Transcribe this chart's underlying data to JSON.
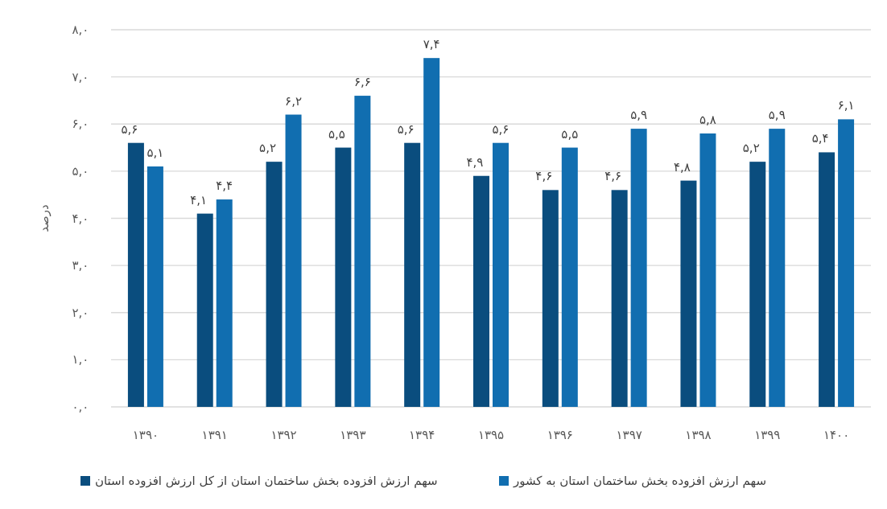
{
  "chart_data": {
    "type": "bar",
    "ylabel": "درصد",
    "categories": [
      "۱۳۹۰",
      "۱۳۹۱",
      "۱۳۹۲",
      "۱۳۹۳",
      "۱۳۹۴",
      "۱۳۹۵",
      "۱۳۹۶",
      "۱۳۹۷",
      "۱۳۹۸",
      "۱۳۹۹",
      "۱۴۰۰"
    ],
    "series": [
      {
        "name": "سهم ارزش افزوده بخش ساختمان استان از کل ارزش افزوده استان",
        "color": "#0a4d7e",
        "values": [
          5.6,
          4.1,
          5.2,
          5.5,
          5.6,
          4.9,
          4.6,
          4.6,
          4.8,
          5.2,
          5.4
        ],
        "value_labels": [
          "۵,۶",
          "۴,۱",
          "۵,۲",
          "۵,۵",
          "۵,۶",
          "۴,۹",
          "۴,۶",
          "۴,۶",
          "۴,۸",
          "۵,۲",
          "۵,۴"
        ]
      },
      {
        "name": "سهم ارزش افزوده بخش ساختمان استان به کشور",
        "color": "#116eb0",
        "values": [
          5.1,
          4.4,
          6.2,
          6.6,
          7.4,
          5.6,
          5.5,
          5.9,
          5.8,
          5.9,
          6.1
        ],
        "value_labels": [
          "۵,۱",
          "۴,۴",
          "۶,۲",
          "۶,۶",
          "۷,۴",
          "۵,۶",
          "۵,۵",
          "۵,۹",
          "۵,۸",
          "۵,۹",
          "۶,۱"
        ]
      }
    ],
    "ylim": [
      0,
      8
    ],
    "yticks": [
      {
        "value": 0,
        "label": "۰,۰"
      },
      {
        "value": 1,
        "label": "۱,۰"
      },
      {
        "value": 2,
        "label": "۲,۰"
      },
      {
        "value": 3,
        "label": "۳,۰"
      },
      {
        "value": 4,
        "label": "۴,۰"
      },
      {
        "value": 5,
        "label": "۵,۰"
      },
      {
        "value": 6,
        "label": "۶,۰"
      },
      {
        "value": 7,
        "label": "۷,۰"
      },
      {
        "value": 8,
        "label": "۸,۰"
      }
    ],
    "grid": "y",
    "legend": "bottom"
  }
}
